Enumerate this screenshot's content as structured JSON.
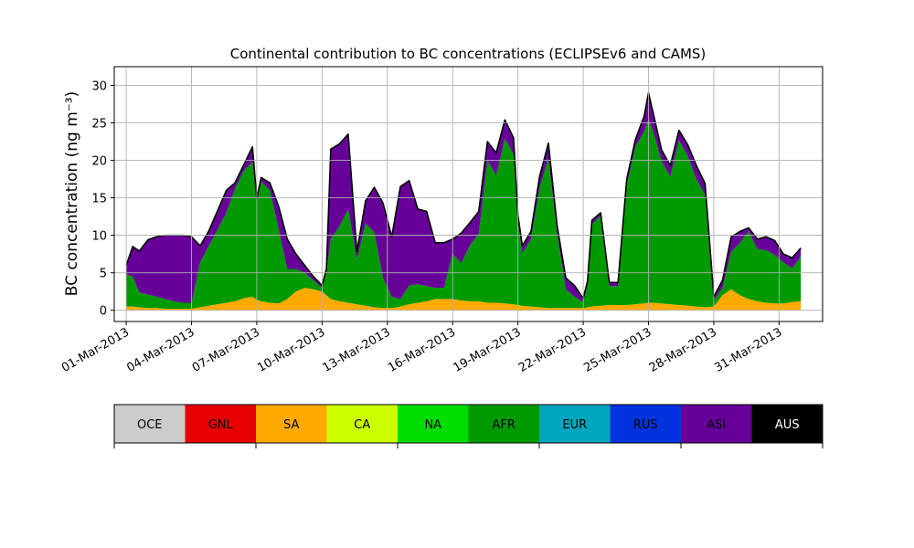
{
  "chart_data": {
    "type": "area",
    "title": "Continental contribution to BC concentrations (ECLIPSEv6 and CAMS)",
    "xlabel": "",
    "ylabel": "BC concentration (ng m⁻³)",
    "ylim": [
      -1.5,
      32.5
    ],
    "yticks": [
      0,
      5,
      10,
      15,
      20,
      25,
      30
    ],
    "x_unit": "day of March 2013",
    "xlim": [
      0.45,
      33.0
    ],
    "xticks": [
      1,
      4,
      7,
      10,
      13,
      16,
      19,
      22,
      25,
      28,
      31
    ],
    "xtick_labels": [
      "01-Mar-2013",
      "04-Mar-2013",
      "07-Mar-2013",
      "10-Mar-2013",
      "13-Mar-2013",
      "16-Mar-2013",
      "19-Mar-2013",
      "22-Mar-2013",
      "25-Mar-2013",
      "28-Mar-2013",
      "31-Mar-2013"
    ],
    "grid": true,
    "legend_position": "colorbar below plot",
    "stack_order": [
      "SA",
      "AFR",
      "ASI"
    ],
    "x": [
      1,
      1.3,
      1.6,
      2,
      2.4,
      2.8,
      3.2,
      3.6,
      4,
      4.4,
      4.8,
      5.2,
      5.6,
      6,
      6.4,
      6.8,
      7,
      7.2,
      7.6,
      8,
      8.4,
      8.8,
      9.2,
      9.6,
      10,
      10.2,
      10.4,
      10.8,
      11.2,
      11.6,
      12,
      12.4,
      12.8,
      13.2,
      13.6,
      14,
      14.4,
      14.8,
      15.2,
      15.6,
      16,
      16.4,
      16.8,
      17.2,
      17.6,
      18,
      18.4,
      18.8,
      19,
      19.2,
      19.6,
      20,
      20.4,
      20.8,
      21.2,
      21.6,
      22,
      22.2,
      22.4,
      22.8,
      23.2,
      23.6,
      24,
      24.4,
      24.8,
      25,
      25.2,
      25.6,
      26,
      26.4,
      26.8,
      27.2,
      27.6,
      28,
      28.4,
      28.8,
      29.2,
      29.6,
      30,
      30.4,
      30.8,
      31.2,
      31.6,
      32
    ],
    "series": [
      {
        "name": "SA",
        "color": "#ffaa00",
        "values": [
          0.5,
          0.5,
          0.4,
          0.3,
          0.3,
          0.2,
          0.2,
          0.2,
          0.2,
          0.4,
          0.6,
          0.8,
          1.0,
          1.2,
          1.6,
          1.8,
          1.4,
          1.2,
          1.0,
          0.9,
          1.5,
          2.5,
          3.0,
          2.8,
          2.5,
          2.0,
          1.5,
          1.2,
          1.0,
          0.8,
          0.6,
          0.4,
          0.3,
          0.3,
          0.5,
          0.8,
          1.0,
          1.2,
          1.5,
          1.5,
          1.5,
          1.3,
          1.2,
          1.2,
          1.0,
          1.0,
          0.9,
          0.8,
          0.7,
          0.6,
          0.5,
          0.4,
          0.3,
          0.3,
          0.3,
          0.3,
          0.3,
          0.4,
          0.5,
          0.6,
          0.7,
          0.7,
          0.7,
          0.8,
          0.9,
          1.0,
          1.0,
          0.9,
          0.8,
          0.7,
          0.6,
          0.5,
          0.4,
          0.5,
          2.0,
          2.8,
          2.0,
          1.5,
          1.2,
          1.0,
          0.9,
          0.9,
          1.1,
          1.2
        ]
      },
      {
        "name": "AFR",
        "color": "#009900",
        "values": [
          4.3,
          4.0,
          2.0,
          1.8,
          1.5,
          1.3,
          1.0,
          0.8,
          0.8,
          6.0,
          8.0,
          10.0,
          12.0,
          15.0,
          17.0,
          18.0,
          13.0,
          16.0,
          15.0,
          10.0,
          4.0,
          3.0,
          2.0,
          1.2,
          0.5,
          3.0,
          8.0,
          10.0,
          12.5,
          6.0,
          11.0,
          10.0,
          4.0,
          1.5,
          1.0,
          2.5,
          2.5,
          2.0,
          1.5,
          1.5,
          6.0,
          5.0,
          7.5,
          9.0,
          19.0,
          17.0,
          22.0,
          20.0,
          11.0,
          7.0,
          9.0,
          16.0,
          20.0,
          10.0,
          2.5,
          1.5,
          0.8,
          3.0,
          11.0,
          12.0,
          2.5,
          2.5,
          16.0,
          21.0,
          23.0,
          24.5,
          23.0,
          19.0,
          17.0,
          22.0,
          20.0,
          17.0,
          15.0,
          0.8,
          1.0,
          5.0,
          7.0,
          9.0,
          7.0,
          7.0,
          6.5,
          5.5,
          4.5,
          6.0
        ]
      },
      {
        "name": "ASI",
        "color": "#660099",
        "values": [
          1.2,
          4.0,
          5.5,
          7.3,
          8.0,
          8.5,
          8.8,
          9.0,
          8.8,
          2.2,
          2.0,
          2.5,
          3.0,
          0.8,
          0.8,
          2.0,
          0.5,
          0.5,
          1.0,
          3.0,
          4.0,
          2.0,
          1.0,
          0.5,
          0.3,
          0.5,
          12.0,
          11.0,
          10.0,
          1.0,
          3.0,
          6.0,
          10.0,
          8.0,
          15.0,
          14.0,
          10.0,
          10.0,
          6.0,
          6.0,
          2.0,
          4.0,
          3.0,
          3.0,
          2.5,
          3.0,
          2.5,
          2.2,
          1.0,
          1.0,
          1.0,
          1.5,
          2.0,
          1.0,
          1.5,
          1.5,
          0.5,
          0.5,
          0.5,
          0.4,
          0.5,
          0.5,
          0.8,
          1.0,
          2.0,
          3.5,
          2.5,
          1.5,
          1.5,
          1.3,
          1.5,
          1.8,
          1.5,
          0.5,
          1.0,
          2.0,
          1.5,
          0.5,
          1.3,
          1.8,
          1.9,
          1.1,
          1.4,
          1.1
        ]
      }
    ],
    "total_line_color": "#000000",
    "colorbar": {
      "labels": [
        "OCE",
        "GNL",
        "SA",
        "CA",
        "NA",
        "AFR",
        "EUR",
        "RUS",
        "ASI",
        "AUS"
      ],
      "colors": [
        "#cccccc",
        "#e60000",
        "#ffaa00",
        "#ccff00",
        "#00dd00",
        "#009900",
        "#00a6bf",
        "#0033dd",
        "#660099",
        "#000000"
      ],
      "text_colors": [
        "#000000",
        "#000000",
        "#000000",
        "#000000",
        "#000000",
        "#000000",
        "#000000",
        "#000000",
        "#000000",
        "#ffffff"
      ]
    }
  }
}
